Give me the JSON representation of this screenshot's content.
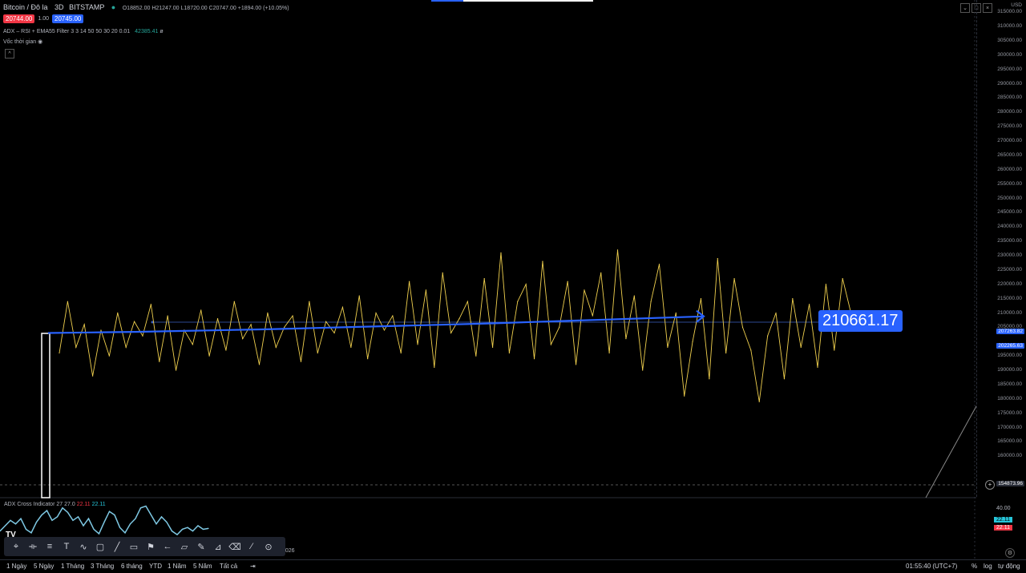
{
  "header": {
    "symbol": "Bitcoin / Đô la",
    "interval": "3D",
    "exchange": "BITSTAMP",
    "ohlc": "O18852.00 H21247.00 L18720.00 C20747.00 +1894.00 (+10.05%)",
    "bid": "20744.00",
    "spread": "1.00",
    "ask": "20745.00",
    "indicator": "ADX – RSI + EMA55 Filter",
    "indicator_params": "3 3 14 50 50 30 20 0.01",
    "indicator_value": "42385.41",
    "indicator_extra": "ø",
    "sub_label": "Vốc thời gian"
  },
  "axis": {
    "currency": "USD",
    "ticks": [
      "315000.00",
      "310000.00",
      "305000.00",
      "300000.00",
      "295000.00",
      "290000.00",
      "285000.00",
      "280000.00",
      "275000.00",
      "270000.00",
      "265000.00",
      "260000.00",
      "255000.00",
      "250000.00",
      "245000.00",
      "240000.00",
      "235000.00",
      "230000.00",
      "225000.00",
      "220000.00",
      "215000.00",
      "210000.00",
      "205000.00",
      "195000.00",
      "190000.00",
      "185000.00",
      "180000.00",
      "175000.00",
      "170000.00",
      "165000.00",
      "160000.00"
    ],
    "tag_upper": "207263.82",
    "tag_lower": "202265.63",
    "crosshair_price": "154873.96"
  },
  "chart_label": "210661.17",
  "panel": {
    "name": "ADX Cross Indicator",
    "v1": "27",
    "v2": "27.0",
    "v3": "22.11",
    "v4": "22.11",
    "axis_tick": "40.00",
    "tag1": "22.11",
    "tag2": "22.11",
    "year": "2026"
  },
  "bottom": {
    "ranges": [
      "1 Ngày",
      "5 Ngày",
      "1 Tháng",
      "3 Tháng",
      "6 tháng",
      "YTD",
      "1 Năm",
      "5 Năm",
      "Tất cả"
    ],
    "time": "01:55:40 (UTC+7)",
    "pct": "%",
    "log": "log",
    "auto": "tự động"
  },
  "toolbar_icons": [
    "cursor-icon",
    "horizontal-line-icon",
    "fib-icon",
    "text-icon",
    "pattern-icon",
    "rectangle-icon",
    "trend-line-icon",
    "callout-icon",
    "flag-icon",
    "arrow-icon",
    "note-icon",
    "brush-icon",
    "ruler-icon",
    "eraser-icon",
    "magic-icon",
    "settings-icon"
  ],
  "colors": {
    "price": "#f0d04e",
    "arrow": "#2962ff",
    "red": "#f23645",
    "cyan": "#26c6da",
    "adx": "#7ec8e3"
  },
  "chart_data": {
    "type": "line",
    "ylim": [
      150000,
      317000
    ],
    "series": [
      {
        "values": [
          196000,
          214000,
          198000,
          206000,
          188000,
          204000,
          195000,
          210000,
          198000,
          207000,
          202000,
          213000,
          193000,
          209000,
          190000,
          204000,
          199000,
          211000,
          195000,
          208000,
          197000,
          214000,
          201000,
          206000,
          192000,
          210000,
          198000,
          205000,
          209000,
          193000,
          214000,
          196000,
          207000,
          203000,
          212000,
          198000,
          216000,
          194000,
          210000,
          204000,
          209000,
          196000,
          221000,
          199000,
          218000,
          191000,
          224000,
          203000,
          208000,
          214000,
          195000,
          222000,
          198000,
          231000,
          196000,
          214000,
          220000,
          194000,
          228000,
          199000,
          205000,
          221000,
          192000,
          218000,
          209000,
          224000,
          196000,
          232000,
          201000,
          216000,
          190000,
          214000,
          227000,
          198000,
          210000,
          181000,
          200000,
          215000,
          187000,
          229000,
          196000,
          222000,
          205000,
          197000,
          179000,
          202000,
          210000,
          187000,
          215000,
          198000,
          213000,
          191000,
          220000,
          197000,
          222000,
          210000,
          206000
        ]
      },
      {
        "name": "EMA55",
        "values": [
          203000,
          203200,
          203400,
          203700,
          204000,
          204300,
          204700,
          205100,
          205500,
          205900,
          206300,
          206800,
          207300,
          207800,
          208300,
          208800
        ]
      }
    ]
  },
  "panel_data": {
    "type": "line",
    "ylim": [
      0,
      45
    ],
    "values": [
      12,
      18,
      24,
      20,
      26,
      14,
      10,
      22,
      30,
      35,
      24,
      28,
      38,
      33,
      24,
      28,
      18,
      26,
      14,
      9,
      22,
      34,
      30,
      16,
      10,
      20,
      26,
      38,
      40,
      30,
      20,
      28,
      22,
      12,
      8,
      14,
      16,
      12,
      18,
      14,
      15
    ]
  }
}
